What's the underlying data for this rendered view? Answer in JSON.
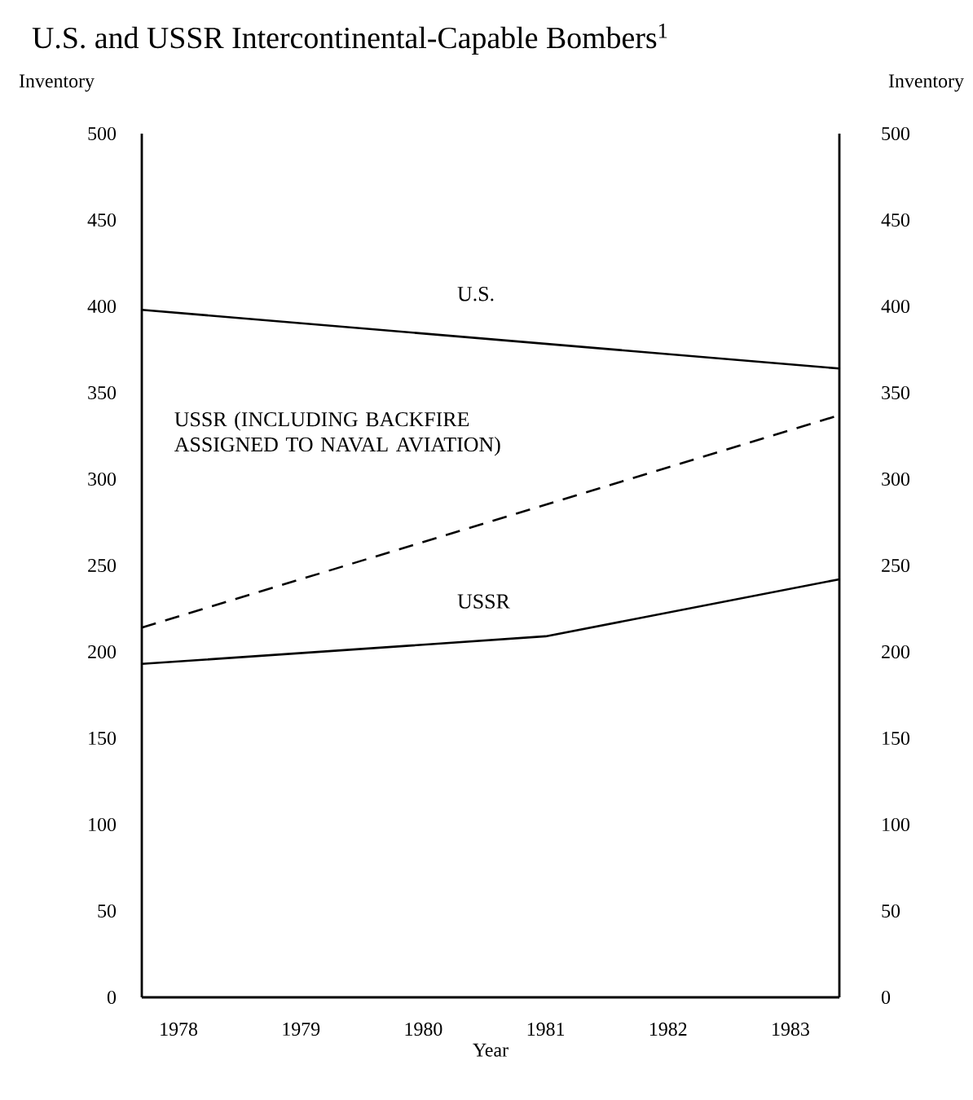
{
  "chart_data": {
    "type": "line",
    "title": "U.S. and USSR Intercontinental-Capable Bombers$^{1}$",
    "xlabel": "Year",
    "ylabel": "Inventory",
    "y2label": "Inventory",
    "xlim": [
      1977.7,
      1983.4
    ],
    "xticks": [
      1978,
      1979,
      1980,
      1981,
      1982,
      1983
    ],
    "ylim": [
      0,
      500
    ],
    "yticks": [
      0,
      50,
      100,
      150,
      200,
      250,
      300,
      350,
      400,
      450,
      500
    ],
    "y2lim": [
      0,
      500
    ],
    "y2ticks": [
      0,
      50,
      100,
      150,
      200,
      250,
      300,
      350,
      400,
      450,
      500
    ],
    "legend": false,
    "grid": false,
    "marker": "none",
    "series": [
      {
        "name": "U.S.",
        "color": "#000000",
        "line_style": "solid",
        "x": [
          1977.7,
          1983.4
        ],
        "values": [
          398,
          364
        ]
      },
      {
        "name": "USSR (INCLUDING BACKFIRE ASSIGNED TO NAVAL AVIATION)",
        "color": "#000000",
        "line_style": "dashed",
        "x": [
          1977.7,
          1983.4
        ],
        "values": [
          214,
          337
        ]
      },
      {
        "name": "USSR",
        "color": "#000000",
        "line_style": "solid",
        "x": [
          1977.7,
          1981,
          1983.4
        ],
        "values": [
          193,
          209,
          242
        ]
      }
    ]
  }
}
